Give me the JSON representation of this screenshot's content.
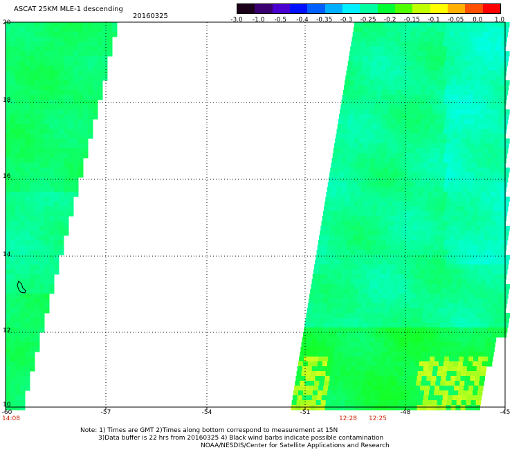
{
  "title": "ASCAT 25KM MLE-1 descending",
  "date": "20160325",
  "colorbar": {
    "labels": [
      "-3.0",
      "-1.0",
      "-0.5",
      "-0.4",
      "-0.35",
      "-0.3",
      "-0.25",
      "-0.2",
      "-0.15",
      "-0.1",
      "-0.05",
      "0.0",
      "1.0"
    ],
    "colors": [
      "#1a0018",
      "#3a0070",
      "#4a00d0",
      "#0010ff",
      "#0060ff",
      "#00b0ff",
      "#00f0ff",
      "#00ffa0",
      "#00ff30",
      "#50ff00",
      "#c0ff00",
      "#ffff00",
      "#ffb000",
      "#ff5000",
      "#ff0000"
    ]
  },
  "lat_labels": [
    "20",
    "18",
    "16",
    "14",
    "12",
    "10"
  ],
  "lon_labels": [
    "-60",
    "-57",
    "-54",
    "-51",
    "-48",
    "-45"
  ],
  "time_labels": [
    "14:08",
    "12:28",
    "12:25"
  ],
  "notes": [
    "Note: 1) Times are GMT 2)Times along bottom correspond to measurement at 15N",
    "3)Data buffer is 22 hrs from 20160325 4) Black wind barbs indicate possible contamination",
    "NOAA/NESDIS/Center for Satellite Applications and Research"
  ],
  "colors": {
    "swath_green": "#22ff22",
    "swath_cyan": "#00ffe0",
    "time_red": "#cc2200"
  }
}
